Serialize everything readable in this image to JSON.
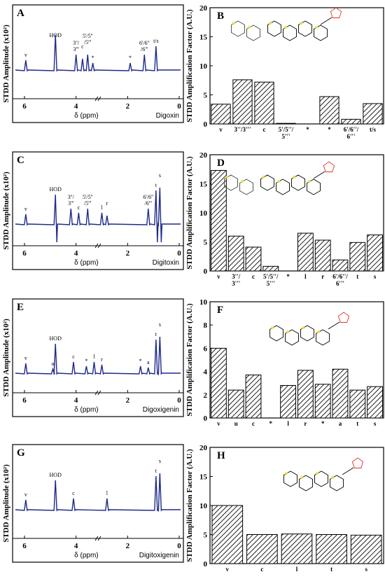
{
  "colors": {
    "spectrum": "#1f2a8a",
    "bar_fill": "#ffffff",
    "bar_hatch": "#222222",
    "molecule_ring": "#2a7fd4",
    "molecule_oh": "#e0342c",
    "highlight": "#f3e24a"
  },
  "axis_titles": {
    "spectrum_y": "STDD Amplitude (x10²)",
    "spectrum_x": "δ (ppm)",
    "bar_y": "STDD Amplification Factor (A.U.)"
  },
  "chart_data": [
    {
      "panel": "A",
      "type": "line",
      "compound": "Digoxin",
      "x_ticks": [
        "6",
        "4",
        "2",
        "0"
      ],
      "peak_labels": [
        {
          "ppm": 5.95,
          "label": "v"
        },
        {
          "ppm": 4.8,
          "label": "HOD"
        },
        {
          "ppm": 4.0,
          "label": "3''/ 3'''"
        },
        {
          "ppm": 3.75,
          "label": "c"
        },
        {
          "ppm": 3.55,
          "label": "5'/5'' /5'''"
        },
        {
          "ppm": 3.35,
          "label": "*"
        },
        {
          "ppm": 1.9,
          "label": "*"
        },
        {
          "ppm": 1.35,
          "label": "6'/6'' /6'''"
        },
        {
          "ppm": 0.9,
          "label": "t/s"
        }
      ]
    },
    {
      "panel": "B",
      "type": "bar",
      "categories": [
        "v",
        "3''/3'''",
        "c",
        "5'/5''/ 5'''",
        "*",
        "*",
        "6'/6''/ 6'''",
        "t/s"
      ],
      "values": [
        3.4,
        7.6,
        7.2,
        0.1,
        0,
        4.7,
        0.8,
        3.5
      ],
      "ylim": [
        0,
        20
      ],
      "y_ticks": [
        "0",
        "5",
        "10",
        "15",
        "20"
      ]
    },
    {
      "panel": "C",
      "type": "line",
      "compound": "Digitoxin",
      "x_ticks": [
        "6",
        "4",
        "2",
        "0"
      ],
      "peak_labels": [
        {
          "ppm": 5.95,
          "label": "v"
        },
        {
          "ppm": 4.8,
          "label": "HOD"
        },
        {
          "ppm": 4.2,
          "label": "3''/ 3'''"
        },
        {
          "ppm": 3.9,
          "label": "c"
        },
        {
          "ppm": 3.55,
          "label": "5'/5'' /5'''"
        },
        {
          "ppm": 3.0,
          "label": "l"
        },
        {
          "ppm": 2.8,
          "label": "r"
        },
        {
          "ppm": 1.2,
          "label": "6'/6'' /6'''"
        },
        {
          "ppm": 0.9,
          "label": "t"
        },
        {
          "ppm": 0.75,
          "label": "s"
        }
      ]
    },
    {
      "panel": "D",
      "type": "bar",
      "categories": [
        "v",
        "3''/ 3'''",
        "c",
        "5'/5''/ 5'''",
        "*",
        "l",
        "r",
        "6'/6''/ 6'''",
        "t",
        "s"
      ],
      "values": [
        17.3,
        6.0,
        4.1,
        0.8,
        0,
        6.5,
        5.3,
        1.9,
        4.9,
        6.2
      ],
      "ylim": [
        0,
        20
      ],
      "y_ticks": [
        "0",
        "5",
        "10",
        "15",
        "20"
      ]
    },
    {
      "panel": "E",
      "type": "line",
      "compound": "Digoxigenin",
      "x_ticks": [
        "6",
        "4",
        "2",
        "0"
      ],
      "peak_labels": [
        {
          "ppm": 5.95,
          "label": "v"
        },
        {
          "ppm": 4.8,
          "label": "HOD"
        },
        {
          "ppm": 4.9,
          "label": "u"
        },
        {
          "ppm": 4.1,
          "label": "c"
        },
        {
          "ppm": 3.6,
          "label": "*"
        },
        {
          "ppm": 3.3,
          "label": "l"
        },
        {
          "ppm": 3.0,
          "label": "r"
        },
        {
          "ppm": 1.5,
          "label": "*"
        },
        {
          "ppm": 1.2,
          "label": "a"
        },
        {
          "ppm": 0.9,
          "label": "t"
        },
        {
          "ppm": 0.75,
          "label": "s"
        }
      ]
    },
    {
      "panel": "F",
      "type": "bar",
      "categories": [
        "v",
        "u",
        "c",
        "*",
        "l",
        "r",
        "*",
        "a",
        "t",
        "s"
      ],
      "values": [
        6.0,
        2.4,
        3.7,
        0,
        2.8,
        4.1,
        2.9,
        4.2,
        2.4,
        2.7
      ],
      "ylim": [
        0,
        10
      ],
      "y_ticks": [
        "0",
        "2",
        "4",
        "6",
        "8",
        "10"
      ]
    },
    {
      "panel": "G",
      "type": "line",
      "compound": "Digitoxigenin",
      "x_ticks": [
        "6",
        "4",
        "2",
        "0"
      ],
      "peak_labels": [
        {
          "ppm": 5.95,
          "label": "v"
        },
        {
          "ppm": 4.8,
          "label": "HOD"
        },
        {
          "ppm": 4.1,
          "label": "c"
        },
        {
          "ppm": 2.8,
          "label": "l"
        },
        {
          "ppm": 0.9,
          "label": "t"
        },
        {
          "ppm": 0.75,
          "label": "s"
        }
      ]
    },
    {
      "panel": "H",
      "type": "bar",
      "categories": [
        "v",
        "c",
        "l",
        "t",
        "s"
      ],
      "values": [
        10.0,
        5.0,
        5.1,
        5.0,
        4.9
      ],
      "ylim": [
        0,
        20
      ],
      "y_ticks": [
        "0",
        "5",
        "10",
        "15",
        "20"
      ]
    }
  ]
}
